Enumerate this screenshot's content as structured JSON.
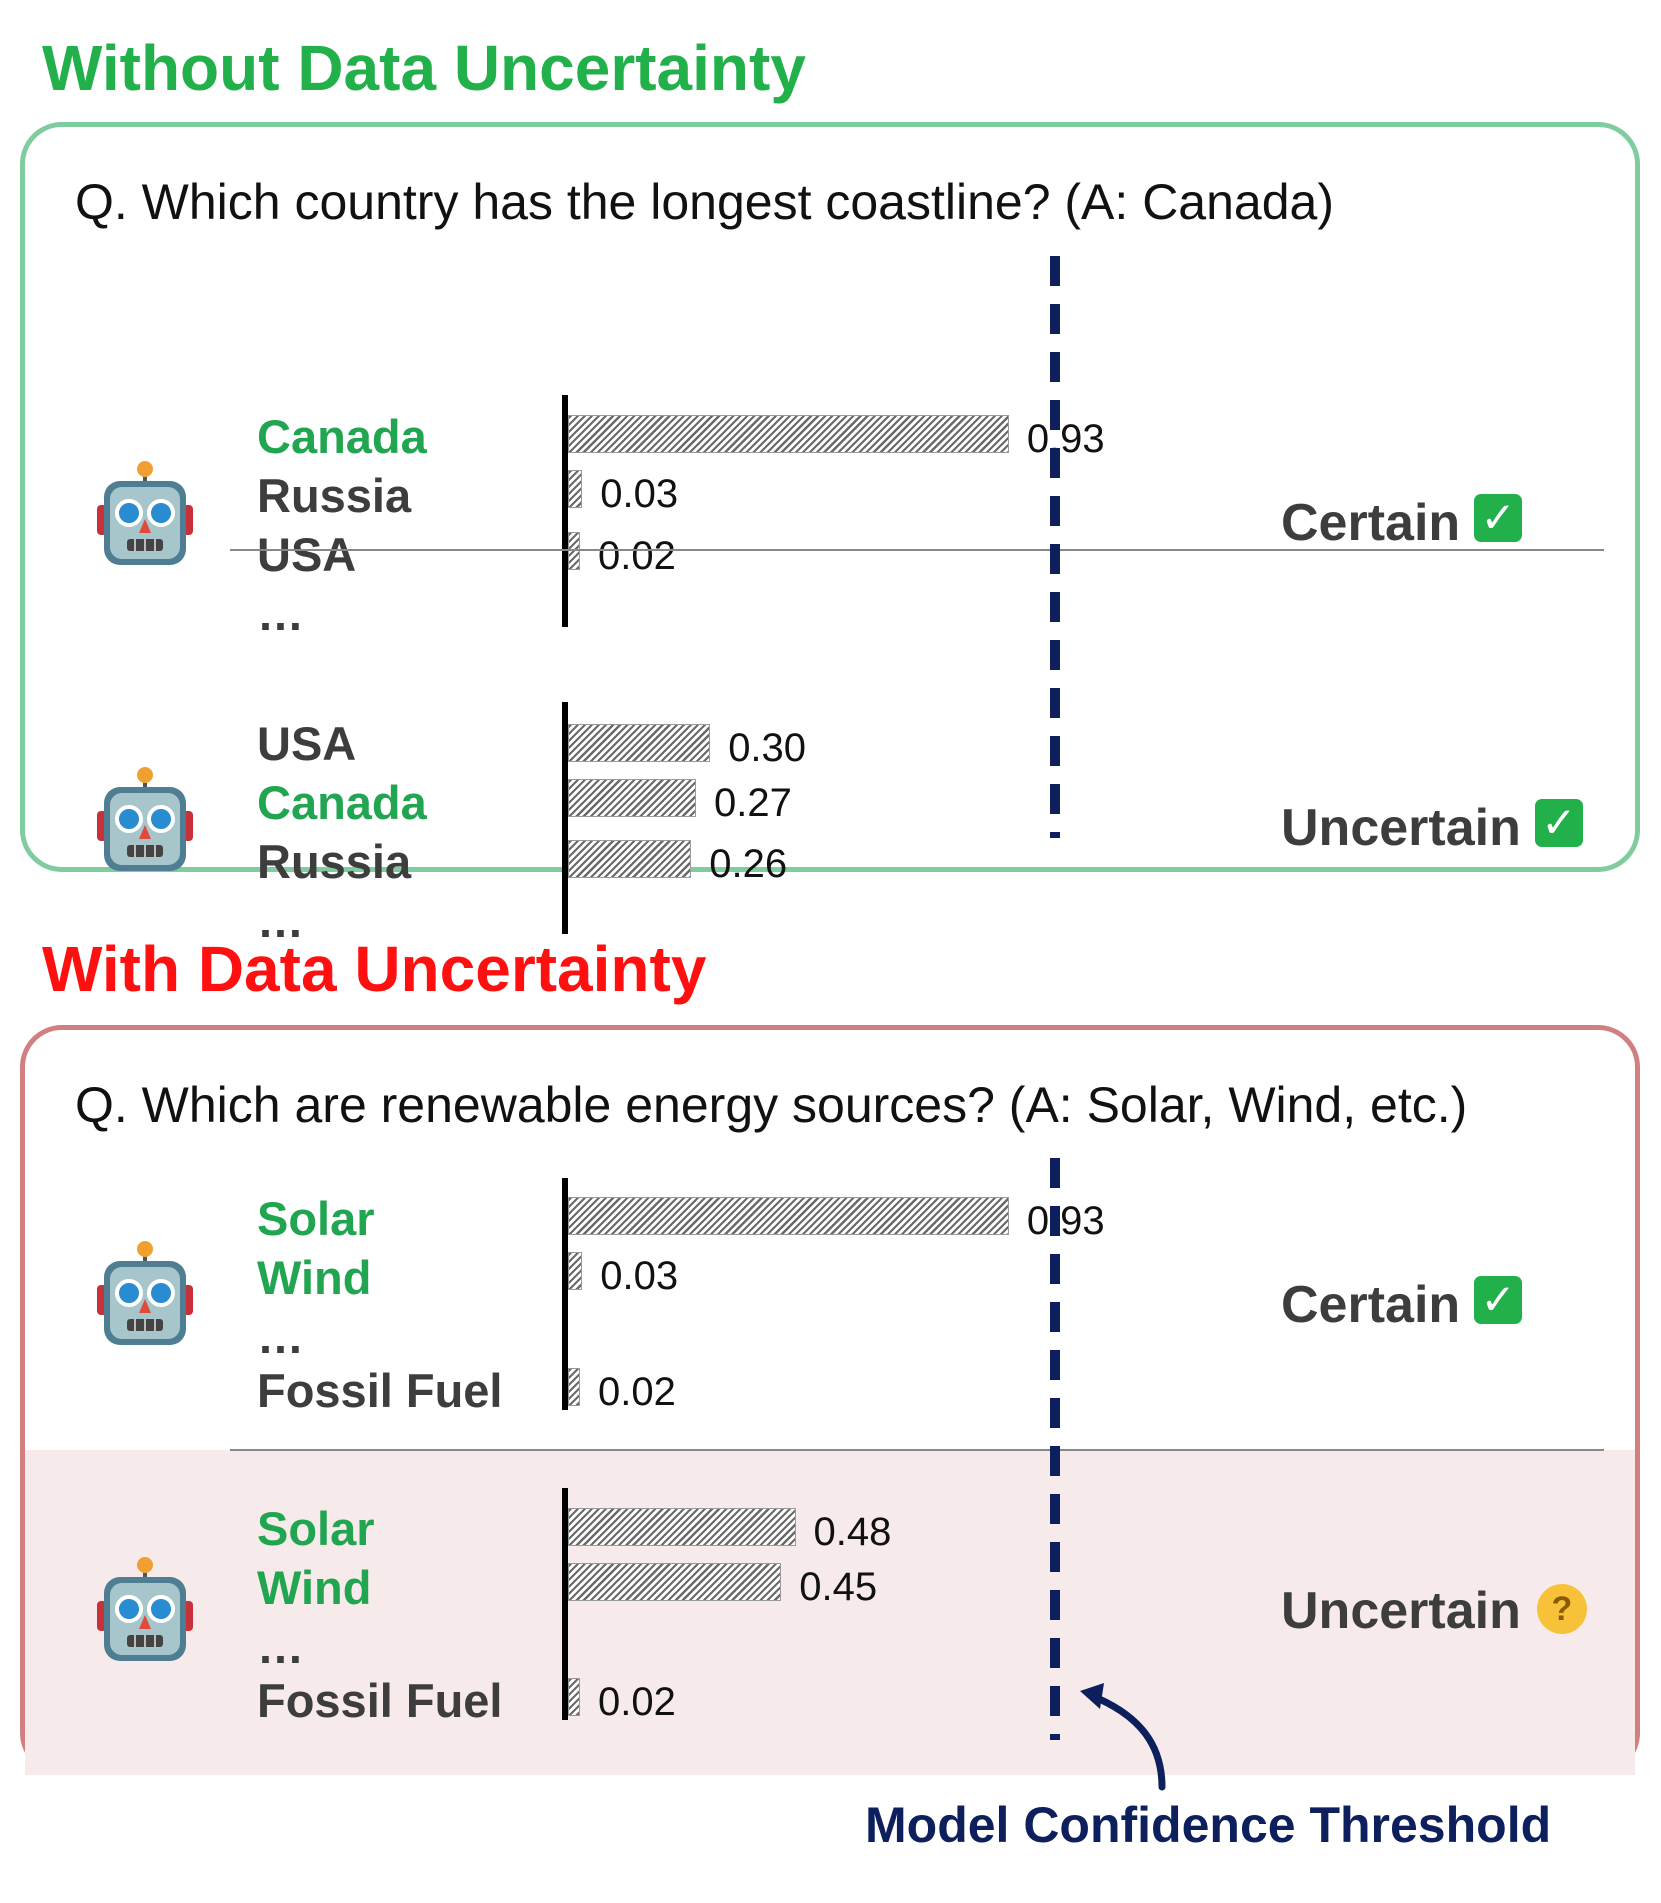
{
  "colors": {
    "correct_answer": "#22a551",
    "wrong_answer": "#3d3d3d",
    "section_without": "#22b04a",
    "section_with": "#ff1010",
    "panel_without_border": "#7fcc9e",
    "panel_with_border": "#d17f80",
    "panel_with_highlight": "#f6ebea",
    "threshold": "#0d1f5c"
  },
  "without": {
    "title": "Without Data Uncertainty",
    "question": "Q. Which country has the longest coastline? (A: Canada)",
    "rows": [
      {
        "candidates": [
          {
            "text": "Canada",
            "correct": true
          },
          {
            "text": "Russia",
            "correct": false
          },
          {
            "text": "USA",
            "correct": false
          },
          {
            "text": "…",
            "correct": false
          }
        ],
        "bars": [
          {
            "value": 0.93,
            "label": "0.93"
          },
          {
            "value": 0.03,
            "label": "0.03"
          },
          {
            "value": 0.02,
            "label": "0.02"
          }
        ],
        "status": "Certain",
        "status_icon": "check-mark-icon"
      },
      {
        "candidates": [
          {
            "text": "USA",
            "correct": false
          },
          {
            "text": "Canada",
            "correct": true
          },
          {
            "text": "Russia",
            "correct": false
          },
          {
            "text": "…",
            "correct": false
          }
        ],
        "bars": [
          {
            "value": 0.3,
            "label": "0.30"
          },
          {
            "value": 0.27,
            "label": "0.27"
          },
          {
            "value": 0.26,
            "label": "0.26"
          }
        ],
        "status": "Uncertain",
        "status_icon": "check-mark-icon"
      }
    ]
  },
  "with": {
    "title": "With Data Uncertainty",
    "question": "Q. Which are renewable energy sources? (A: Solar, Wind, etc.)",
    "rows": [
      {
        "candidates": [
          {
            "text": "Solar",
            "correct": true
          },
          {
            "text": "Wind",
            "correct": true
          },
          {
            "text": "…",
            "correct": false
          },
          {
            "text": "Fossil Fuel",
            "correct": false
          }
        ],
        "bars": [
          {
            "value": 0.93,
            "label": "0.93"
          },
          {
            "value": 0.03,
            "label": "0.03"
          },
          {
            "value": 0.02,
            "label": "0.02"
          }
        ],
        "status": "Certain",
        "status_icon": "check-mark-icon"
      },
      {
        "candidates": [
          {
            "text": "Solar",
            "correct": true
          },
          {
            "text": "Wind",
            "correct": true
          },
          {
            "text": "…",
            "correct": false
          },
          {
            "text": "Fossil Fuel",
            "correct": false
          }
        ],
        "bars": [
          {
            "value": 0.48,
            "label": "0.48"
          },
          {
            "value": 0.45,
            "label": "0.45"
          },
          {
            "value": 0.02,
            "label": "0.02"
          }
        ],
        "status": "Uncertain",
        "status_icon": "thinking-face-icon"
      }
    ]
  },
  "threshold": {
    "label": "Model Confidence Threshold"
  }
}
